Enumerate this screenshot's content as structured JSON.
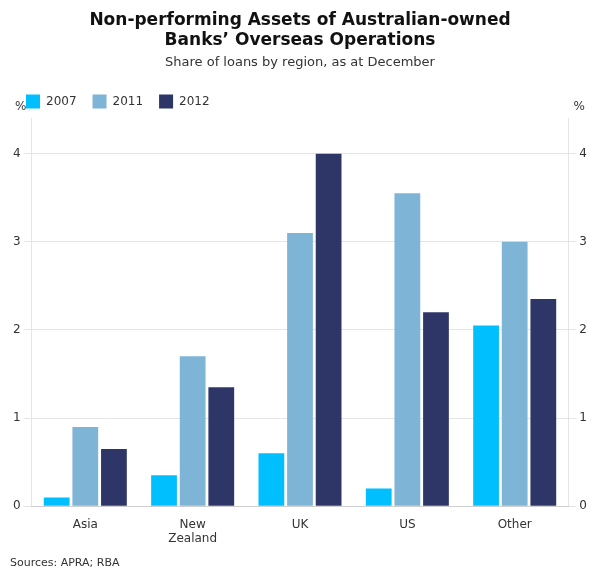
{
  "chart_data": {
    "type": "bar",
    "title": "Non-performing Assets of Australian-owned\nBanks’ Overseas Operations",
    "subtitle": "Share of loans by region, as at December",
    "categories": [
      "Asia",
      "New\nZealand",
      "UK",
      "US",
      "Other"
    ],
    "series": [
      {
        "name": "2007",
        "color": "#00BFFF",
        "values": [
          0.1,
          0.35,
          0.6,
          0.2,
          2.05
        ]
      },
      {
        "name": "2011",
        "color": "#7EB5D6",
        "values": [
          0.9,
          1.7,
          3.1,
          3.55,
          3.0
        ]
      },
      {
        "name": "2012",
        "color": "#2E3668",
        "values": [
          0.65,
          1.35,
          4.0,
          2.2,
          2.35
        ]
      }
    ],
    "ylabel": "%",
    "y2label": "%",
    "ylim": [
      0,
      4.4
    ],
    "yticks": [
      0,
      1,
      2,
      3,
      4
    ],
    "y2lim": [
      0,
      4.4
    ],
    "y2ticks": [
      0,
      1,
      2,
      3,
      4
    ],
    "grid": true,
    "legend": "upper left",
    "source": "Sources: APRA; RBA"
  }
}
